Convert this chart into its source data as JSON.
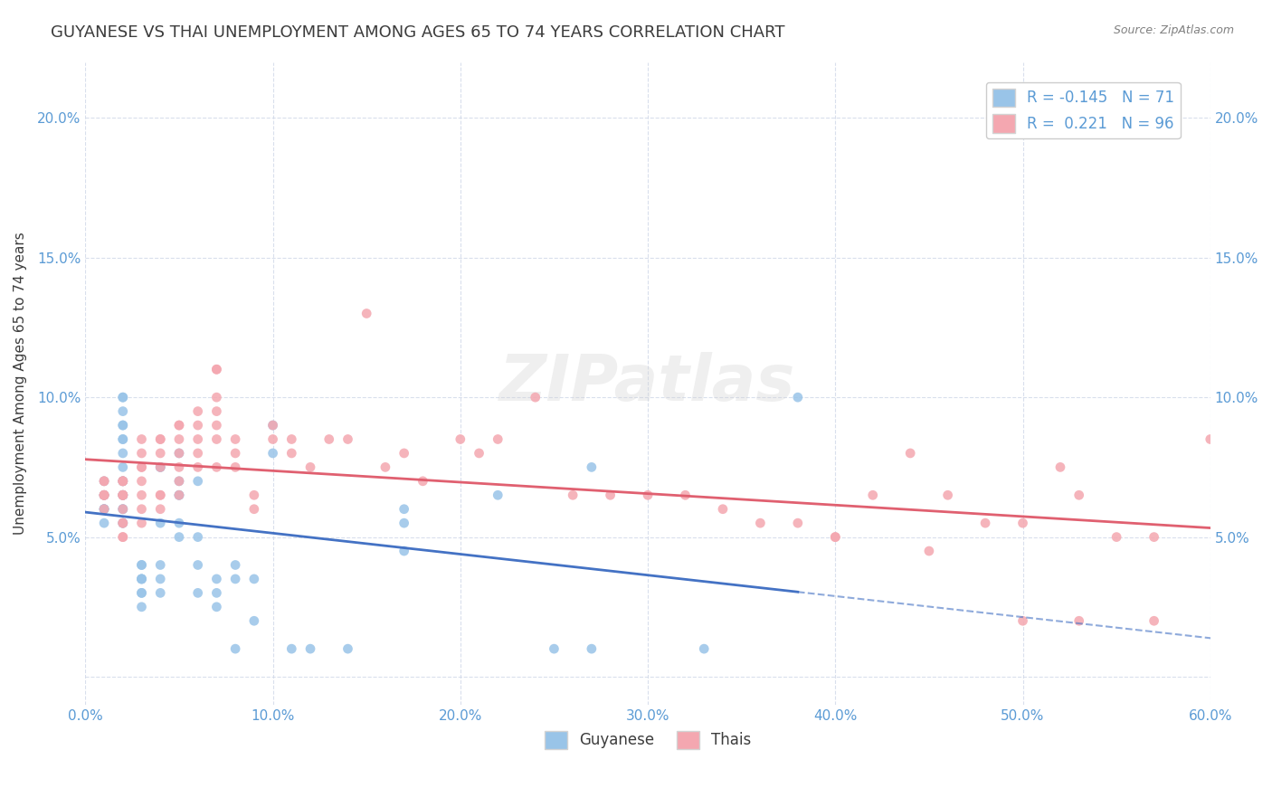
{
  "title": "GUYANESE VS THAI UNEMPLOYMENT AMONG AGES 65 TO 74 YEARS CORRELATION CHART",
  "source": "Source: ZipAtlas.com",
  "ylabel": "Unemployment Among Ages 65 to 74 years",
  "xlabel": "",
  "watermark": "ZIPatlas",
  "legend_blue_label": "Guyanese",
  "legend_pink_label": "Thais",
  "blue_R": -0.145,
  "blue_N": 71,
  "pink_R": 0.221,
  "pink_N": 96,
  "xlim": [
    0.0,
    0.6
  ],
  "ylim": [
    -0.01,
    0.22
  ],
  "xticks": [
    0.0,
    0.1,
    0.2,
    0.3,
    0.4,
    0.5,
    0.6
  ],
  "yticks": [
    0.0,
    0.05,
    0.1,
    0.15,
    0.2
  ],
  "xticklabels": [
    "0.0%",
    "10.0%",
    "20.0%",
    "30.0%",
    "40.0%",
    "50.0%",
    "60.0%"
  ],
  "yticklabels_left": [
    "",
    "5.0%",
    "10.0%",
    "15.0%",
    "20.0%"
  ],
  "yticklabels_right": [
    "",
    "5.0%",
    "10.0%",
    "15.0%",
    "20.0%"
  ],
  "title_color": "#3c3c3c",
  "title_fontsize": 13,
  "axis_label_color": "#3c3c3c",
  "tick_color": "#5b9bd5",
  "blue_scatter_color": "#99c4e8",
  "pink_scatter_color": "#f4a7b0",
  "blue_line_color": "#4472c4",
  "pink_line_color": "#e06070",
  "blue_line_dash": false,
  "pink_line_dash": false,
  "blue_trend_extended_dash": true,
  "grid_color": "#d0d8e8",
  "background_color": "#ffffff",
  "blue_x": [
    0.01,
    0.01,
    0.01,
    0.01,
    0.01,
    0.01,
    0.01,
    0.02,
    0.02,
    0.02,
    0.02,
    0.02,
    0.02,
    0.02,
    0.02,
    0.02,
    0.02,
    0.02,
    0.02,
    0.02,
    0.02,
    0.02,
    0.02,
    0.02,
    0.02,
    0.03,
    0.03,
    0.03,
    0.03,
    0.03,
    0.03,
    0.03,
    0.03,
    0.04,
    0.04,
    0.04,
    0.04,
    0.04,
    0.04,
    0.05,
    0.05,
    0.05,
    0.05,
    0.05,
    0.05,
    0.06,
    0.06,
    0.06,
    0.06,
    0.07,
    0.07,
    0.07,
    0.08,
    0.08,
    0.08,
    0.09,
    0.09,
    0.1,
    0.1,
    0.11,
    0.12,
    0.14,
    0.17,
    0.17,
    0.17,
    0.22,
    0.25,
    0.27,
    0.27,
    0.33,
    0.38
  ],
  "blue_y": [
    0.07,
    0.065,
    0.065,
    0.06,
    0.06,
    0.06,
    0.055,
    0.1,
    0.1,
    0.095,
    0.09,
    0.09,
    0.085,
    0.085,
    0.08,
    0.075,
    0.07,
    0.07,
    0.065,
    0.065,
    0.065,
    0.06,
    0.06,
    0.055,
    0.055,
    0.04,
    0.04,
    0.035,
    0.035,
    0.035,
    0.03,
    0.03,
    0.025,
    0.075,
    0.075,
    0.055,
    0.04,
    0.035,
    0.03,
    0.08,
    0.07,
    0.065,
    0.065,
    0.055,
    0.05,
    0.07,
    0.05,
    0.04,
    0.03,
    0.035,
    0.03,
    0.025,
    0.04,
    0.035,
    0.01,
    0.035,
    0.02,
    0.08,
    0.09,
    0.01,
    0.01,
    0.01,
    0.06,
    0.055,
    0.045,
    0.065,
    0.01,
    0.01,
    0.075,
    0.01,
    0.1
  ],
  "pink_x": [
    0.01,
    0.01,
    0.01,
    0.01,
    0.01,
    0.01,
    0.01,
    0.02,
    0.02,
    0.02,
    0.02,
    0.02,
    0.02,
    0.02,
    0.02,
    0.02,
    0.02,
    0.02,
    0.02,
    0.03,
    0.03,
    0.03,
    0.03,
    0.03,
    0.03,
    0.03,
    0.03,
    0.04,
    0.04,
    0.04,
    0.04,
    0.04,
    0.04,
    0.04,
    0.05,
    0.05,
    0.05,
    0.05,
    0.05,
    0.05,
    0.05,
    0.06,
    0.06,
    0.06,
    0.06,
    0.06,
    0.07,
    0.07,
    0.07,
    0.07,
    0.07,
    0.07,
    0.07,
    0.08,
    0.08,
    0.08,
    0.09,
    0.09,
    0.1,
    0.1,
    0.11,
    0.11,
    0.12,
    0.13,
    0.14,
    0.15,
    0.16,
    0.17,
    0.18,
    0.2,
    0.21,
    0.22,
    0.24,
    0.26,
    0.28,
    0.3,
    0.32,
    0.34,
    0.36,
    0.38,
    0.4,
    0.42,
    0.44,
    0.46,
    0.48,
    0.5,
    0.52,
    0.53,
    0.55,
    0.57,
    0.4,
    0.45,
    0.5,
    0.53,
    0.57,
    0.6
  ],
  "pink_y": [
    0.06,
    0.065,
    0.065,
    0.07,
    0.07,
    0.065,
    0.065,
    0.065,
    0.065,
    0.07,
    0.07,
    0.065,
    0.07,
    0.065,
    0.06,
    0.055,
    0.055,
    0.05,
    0.05,
    0.085,
    0.08,
    0.075,
    0.075,
    0.07,
    0.065,
    0.06,
    0.055,
    0.085,
    0.085,
    0.08,
    0.075,
    0.065,
    0.065,
    0.06,
    0.09,
    0.09,
    0.085,
    0.08,
    0.075,
    0.07,
    0.065,
    0.095,
    0.09,
    0.085,
    0.08,
    0.075,
    0.11,
    0.11,
    0.1,
    0.095,
    0.09,
    0.085,
    0.075,
    0.085,
    0.08,
    0.075,
    0.065,
    0.06,
    0.09,
    0.085,
    0.085,
    0.08,
    0.075,
    0.085,
    0.085,
    0.13,
    0.075,
    0.08,
    0.07,
    0.085,
    0.08,
    0.085,
    0.1,
    0.065,
    0.065,
    0.065,
    0.065,
    0.06,
    0.055,
    0.055,
    0.05,
    0.065,
    0.08,
    0.065,
    0.055,
    0.055,
    0.075,
    0.065,
    0.05,
    0.05,
    0.05,
    0.045,
    0.02,
    0.02,
    0.02,
    0.085
  ]
}
